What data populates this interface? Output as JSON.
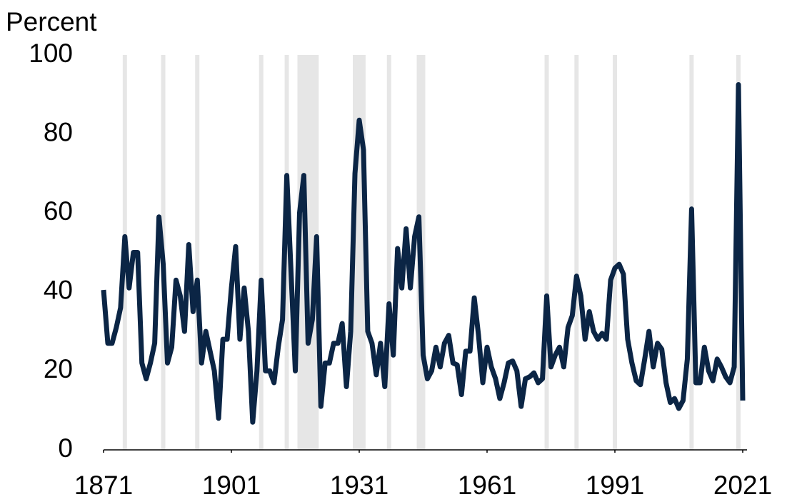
{
  "chart_data": {
    "type": "line",
    "y_label": "Percent",
    "x": [
      1871,
      1872,
      1873,
      1874,
      1875,
      1876,
      1877,
      1878,
      1879,
      1880,
      1881,
      1882,
      1883,
      1884,
      1885,
      1886,
      1887,
      1888,
      1889,
      1890,
      1891,
      1892,
      1893,
      1894,
      1895,
      1896,
      1897,
      1898,
      1899,
      1900,
      1901,
      1902,
      1903,
      1904,
      1905,
      1906,
      1907,
      1908,
      1909,
      1910,
      1911,
      1912,
      1913,
      1914,
      1915,
      1916,
      1917,
      1918,
      1919,
      1920,
      1921,
      1922,
      1923,
      1924,
      1925,
      1926,
      1927,
      1928,
      1929,
      1930,
      1931,
      1932,
      1933,
      1934,
      1935,
      1936,
      1937,
      1938,
      1939,
      1940,
      1941,
      1942,
      1943,
      1944,
      1945,
      1946,
      1947,
      1948,
      1949,
      1950,
      1951,
      1952,
      1953,
      1954,
      1955,
      1956,
      1957,
      1958,
      1959,
      1960,
      1961,
      1962,
      1963,
      1964,
      1965,
      1966,
      1967,
      1968,
      1969,
      1970,
      1971,
      1972,
      1973,
      1974,
      1975,
      1976,
      1977,
      1978,
      1979,
      1980,
      1981,
      1982,
      1983,
      1984,
      1985,
      1986,
      1987,
      1988,
      1989,
      1990,
      1991,
      1992,
      1993,
      1994,
      1995,
      1996,
      1997,
      1998,
      1999,
      2000,
      2001,
      2002,
      2003,
      2004,
      2005,
      2006,
      2007,
      2008,
      2009,
      2010,
      2011,
      2012,
      2013,
      2014,
      2015,
      2016,
      2017,
      2018,
      2019,
      2020,
      2021
    ],
    "series": [
      {
        "color": "#0b2545",
        "values": [
          40.5,
          27,
          27,
          31,
          36,
          54,
          41,
          50,
          50,
          22,
          18,
          22,
          27,
          59,
          47,
          22,
          26,
          43,
          39,
          30,
          52,
          35,
          43,
          22,
          30,
          25,
          20,
          8,
          28,
          28,
          41,
          51.5,
          28,
          41,
          30,
          7,
          20,
          43,
          20,
          20,
          17,
          26,
          33,
          69.5,
          45,
          20,
          60,
          69.5,
          27,
          33,
          54,
          11,
          22,
          22,
          27,
          27,
          32,
          16,
          30,
          70,
          83.5,
          76,
          30,
          27,
          19,
          27,
          16,
          37,
          24,
          51,
          41,
          56,
          41,
          54,
          59,
          24,
          18,
          20,
          26,
          21,
          27,
          29,
          22,
          21.5,
          14,
          25,
          25,
          38.5,
          29,
          17,
          26,
          21,
          18,
          13,
          17,
          22,
          22.5,
          20,
          11,
          18,
          18.5,
          19.5,
          17,
          18,
          39,
          21,
          24,
          26,
          21,
          31,
          34,
          44,
          39,
          28,
          35,
          30,
          28,
          29.5,
          28,
          43,
          46,
          47,
          44.5,
          28,
          22,
          17.5,
          16.5,
          23,
          30,
          21,
          27,
          25.5,
          17,
          12,
          13,
          10.5,
          12.5,
          23,
          61,
          17,
          17,
          26,
          20,
          17.5,
          23,
          21,
          18.5,
          17,
          21,
          92.5,
          12.5
        ]
      }
    ],
    "shaded_periods": [
      [
        1876,
        1877
      ],
      [
        1885,
        1886
      ],
      [
        1893,
        1894
      ],
      [
        1908,
        1909
      ],
      [
        1914,
        1915
      ],
      [
        1917,
        1922
      ],
      [
        1930,
        1933
      ],
      [
        1938,
        1939
      ],
      [
        1945,
        1947
      ],
      [
        1975,
        1976
      ],
      [
        1982,
        1983
      ],
      [
        1991,
        1992
      ],
      [
        2009,
        2010
      ],
      [
        2020,
        2021
      ]
    ],
    "shade_color": "#e6e6e6",
    "xlim": [
      1871,
      2021
    ],
    "xticks": [
      1871,
      1901,
      1931,
      1961,
      1991,
      2021
    ],
    "ylim": [
      0,
      100
    ],
    "yticks": [
      0,
      20,
      40,
      60,
      80,
      100
    ]
  }
}
